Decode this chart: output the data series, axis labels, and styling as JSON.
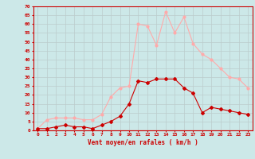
{
  "x": [
    0,
    1,
    2,
    3,
    4,
    5,
    6,
    7,
    8,
    9,
    10,
    11,
    12,
    13,
    14,
    15,
    16,
    17,
    18,
    19,
    20,
    21,
    22,
    23
  ],
  "vent_moyen": [
    1,
    1,
    2,
    3,
    2,
    2,
    1,
    3,
    5,
    8,
    15,
    28,
    27,
    29,
    29,
    29,
    24,
    21,
    10,
    13,
    12,
    11,
    10,
    9
  ],
  "rafales": [
    1,
    6,
    7,
    7,
    7,
    6,
    6,
    9,
    19,
    24,
    25,
    60,
    59,
    48,
    67,
    55,
    64,
    49,
    43,
    40,
    35,
    30,
    29,
    24
  ],
  "color_moyen": "#cc0000",
  "color_rafales": "#ffaaaa",
  "bg_color": "#cce8e8",
  "grid_color": "#bbcccc",
  "xlabel": "Vent moyen/en rafales ( km/h )",
  "ylim": [
    0,
    70
  ],
  "yticks": [
    0,
    5,
    10,
    15,
    20,
    25,
    30,
    35,
    40,
    45,
    50,
    55,
    60,
    65,
    70
  ],
  "xticks": [
    0,
    1,
    2,
    3,
    4,
    5,
    6,
    7,
    8,
    9,
    10,
    11,
    12,
    13,
    14,
    15,
    16,
    17,
    18,
    19,
    20,
    21,
    22,
    23
  ]
}
